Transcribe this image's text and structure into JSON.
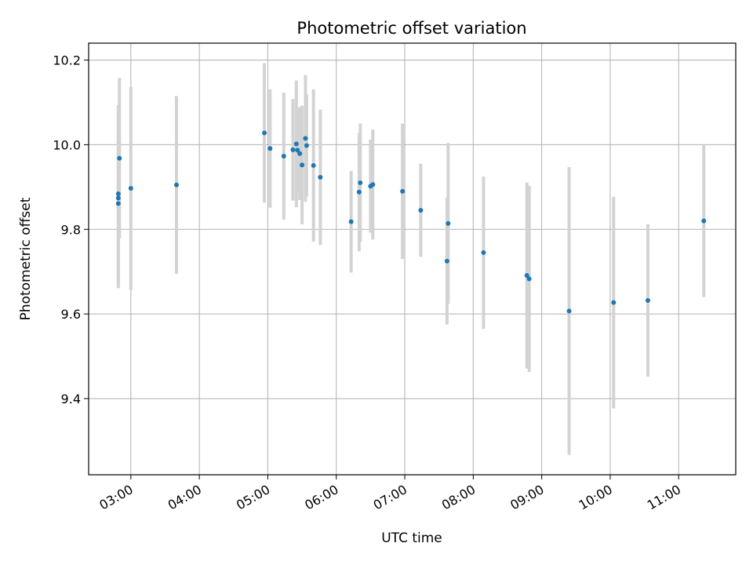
{
  "chart_data": {
    "type": "scatter",
    "title": "Photometric offset variation",
    "xlabel": "UTC time",
    "ylabel": "Photometric offset",
    "xlim": [
      "02:23",
      "11:50"
    ],
    "ylim": [
      9.22,
      10.24
    ],
    "x_ticks": [
      "03:00",
      "04:00",
      "05:00",
      "06:00",
      "07:00",
      "08:00",
      "09:00",
      "10:00",
      "11:00"
    ],
    "y_ticks": [
      9.4,
      9.6,
      9.8,
      10.0,
      10.2
    ],
    "y_tick_labels": [
      "9.4",
      "9.6",
      "9.8",
      "10.0",
      "10.2"
    ],
    "grid": true,
    "colors": {
      "point": "#1f77b4",
      "errorbar": "#d3d3d3",
      "grid": "#b0b0b0"
    },
    "series": [
      {
        "points": [
          {
            "x": "02:49",
            "y": 9.861,
            "err": 0.2
          },
          {
            "x": "02:49",
            "y": 9.874,
            "err": 0.2
          },
          {
            "x": "02:49",
            "y": 9.884,
            "err": 0.21
          },
          {
            "x": "02:50",
            "y": 9.968,
            "err": 0.19
          },
          {
            "x": "03:00",
            "y": 9.897,
            "err": 0.24
          },
          {
            "x": "03:40",
            "y": 9.905,
            "err": 0.21
          },
          {
            "x": "04:57",
            "y": 10.028,
            "err": 0.165
          },
          {
            "x": "05:02",
            "y": 9.991,
            "err": 0.14
          },
          {
            "x": "05:14",
            "y": 9.973,
            "err": 0.15
          },
          {
            "x": "05:22",
            "y": 9.988,
            "err": 0.12
          },
          {
            "x": "05:25",
            "y": 10.002,
            "err": 0.15
          },
          {
            "x": "05:26",
            "y": 9.987,
            "err": 0.1
          },
          {
            "x": "05:28",
            "y": 9.979,
            "err": 0.11
          },
          {
            "x": "05:30",
            "y": 9.952,
            "err": 0.14
          },
          {
            "x": "05:33",
            "y": 10.015,
            "err": 0.15
          },
          {
            "x": "05:34",
            "y": 9.998,
            "err": 0.12
          },
          {
            "x": "05:40",
            "y": 9.951,
            "err": 0.18
          },
          {
            "x": "05:46",
            "y": 9.923,
            "err": 0.16
          },
          {
            "x": "06:13",
            "y": 9.818,
            "err": 0.12
          },
          {
            "x": "06:20",
            "y": 9.888,
            "err": 0.14
          },
          {
            "x": "06:21",
            "y": 9.91,
            "err": 0.14
          },
          {
            "x": "06:30",
            "y": 9.902,
            "err": 0.11
          },
          {
            "x": "06:32",
            "y": 9.906,
            "err": 0.13
          },
          {
            "x": "06:58",
            "y": 9.89,
            "err": 0.16
          },
          {
            "x": "07:14",
            "y": 9.845,
            "err": 0.11
          },
          {
            "x": "07:37",
            "y": 9.725,
            "err": 0.15
          },
          {
            "x": "07:38",
            "y": 9.814,
            "err": 0.19
          },
          {
            "x": "08:09",
            "y": 9.745,
            "err": 0.18
          },
          {
            "x": "08:47",
            "y": 9.691,
            "err": 0.22
          },
          {
            "x": "08:49",
            "y": 9.683,
            "err": 0.22
          },
          {
            "x": "09:24",
            "y": 9.607,
            "err": 0.34
          },
          {
            "x": "10:03",
            "y": 9.627,
            "err": 0.25
          },
          {
            "x": "10:33",
            "y": 9.632,
            "err": 0.18
          },
          {
            "x": "11:22",
            "y": 9.82,
            "err": 0.18
          }
        ]
      }
    ]
  }
}
